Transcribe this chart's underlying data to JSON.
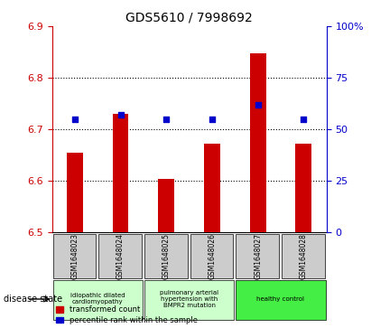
{
  "title": "GDS5610 / 7998692",
  "samples": [
    "GSM1648023",
    "GSM1648024",
    "GSM1648025",
    "GSM1648026",
    "GSM1648027",
    "GSM1648028"
  ],
  "red_values": [
    6.655,
    6.73,
    6.603,
    6.672,
    6.847,
    6.672
  ],
  "blue_values": [
    55,
    57,
    55,
    55,
    62,
    55
  ],
  "ylim_left": [
    6.5,
    6.9
  ],
  "ylim_right": [
    0,
    100
  ],
  "yticks_left": [
    6.5,
    6.6,
    6.7,
    6.8,
    6.9
  ],
  "yticks_right": [
    0,
    25,
    50,
    75,
    100
  ],
  "bar_color": "#cc0000",
  "dot_color": "#0000cc",
  "disease_groups": [
    {
      "label": "idiopathic dilated\ncardiomyopathy",
      "start": 0,
      "end": 2,
      "color": "#ccffcc"
    },
    {
      "label": "pulmonary arterial\nhypertension with\nBMPR2 mutation",
      "start": 2,
      "end": 4,
      "color": "#ccffcc"
    },
    {
      "label": "healthy control",
      "start": 4,
      "end": 6,
      "color": "#44ee44"
    }
  ],
  "legend_red": "transformed count",
  "legend_blue": "percentile rank within the sample",
  "disease_state_label": "disease state",
  "axis_color_left": "#cc0000",
  "axis_color_right": "#0000cc",
  "bar_bottom": 6.5,
  "grid_lines": [
    6.6,
    6.7,
    6.8
  ]
}
